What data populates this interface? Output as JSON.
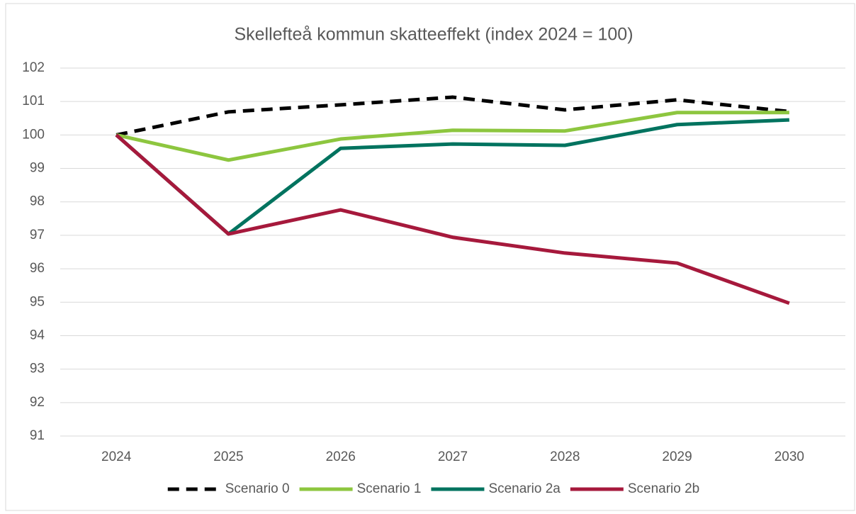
{
  "chart_data": {
    "type": "line",
    "title": "Skellefteå kommun skatteeffekt (index 2024 = 100)",
    "categories": [
      "2024",
      "2025",
      "2026",
      "2027",
      "2028",
      "2029",
      "2030"
    ],
    "series": [
      {
        "name": "Scenario 0",
        "color": "#000000",
        "style": "dashed",
        "values": [
          100,
          100.69,
          100.9,
          101.13,
          100.75,
          101.05,
          100.7
        ]
      },
      {
        "name": "Scenario 1",
        "color": "#8dc63f",
        "values": [
          100,
          99.25,
          99.88,
          100.14,
          100.12,
          100.67,
          100.67
        ]
      },
      {
        "name": "Scenario 2a",
        "color": "#00735f",
        "values": [
          100,
          97.04,
          99.6,
          99.73,
          99.69,
          100.31,
          100.45
        ]
      },
      {
        "name": "Scenario 2b",
        "color": "#a6193c",
        "values": [
          100,
          97.04,
          97.76,
          96.94,
          96.47,
          96.17,
          94.97
        ]
      }
    ],
    "ylim": [
      91,
      102
    ],
    "yticks": [
      91,
      92,
      93,
      94,
      95,
      96,
      97,
      98,
      99,
      100,
      101,
      102
    ],
    "grid": true,
    "legend": "bottom"
  }
}
